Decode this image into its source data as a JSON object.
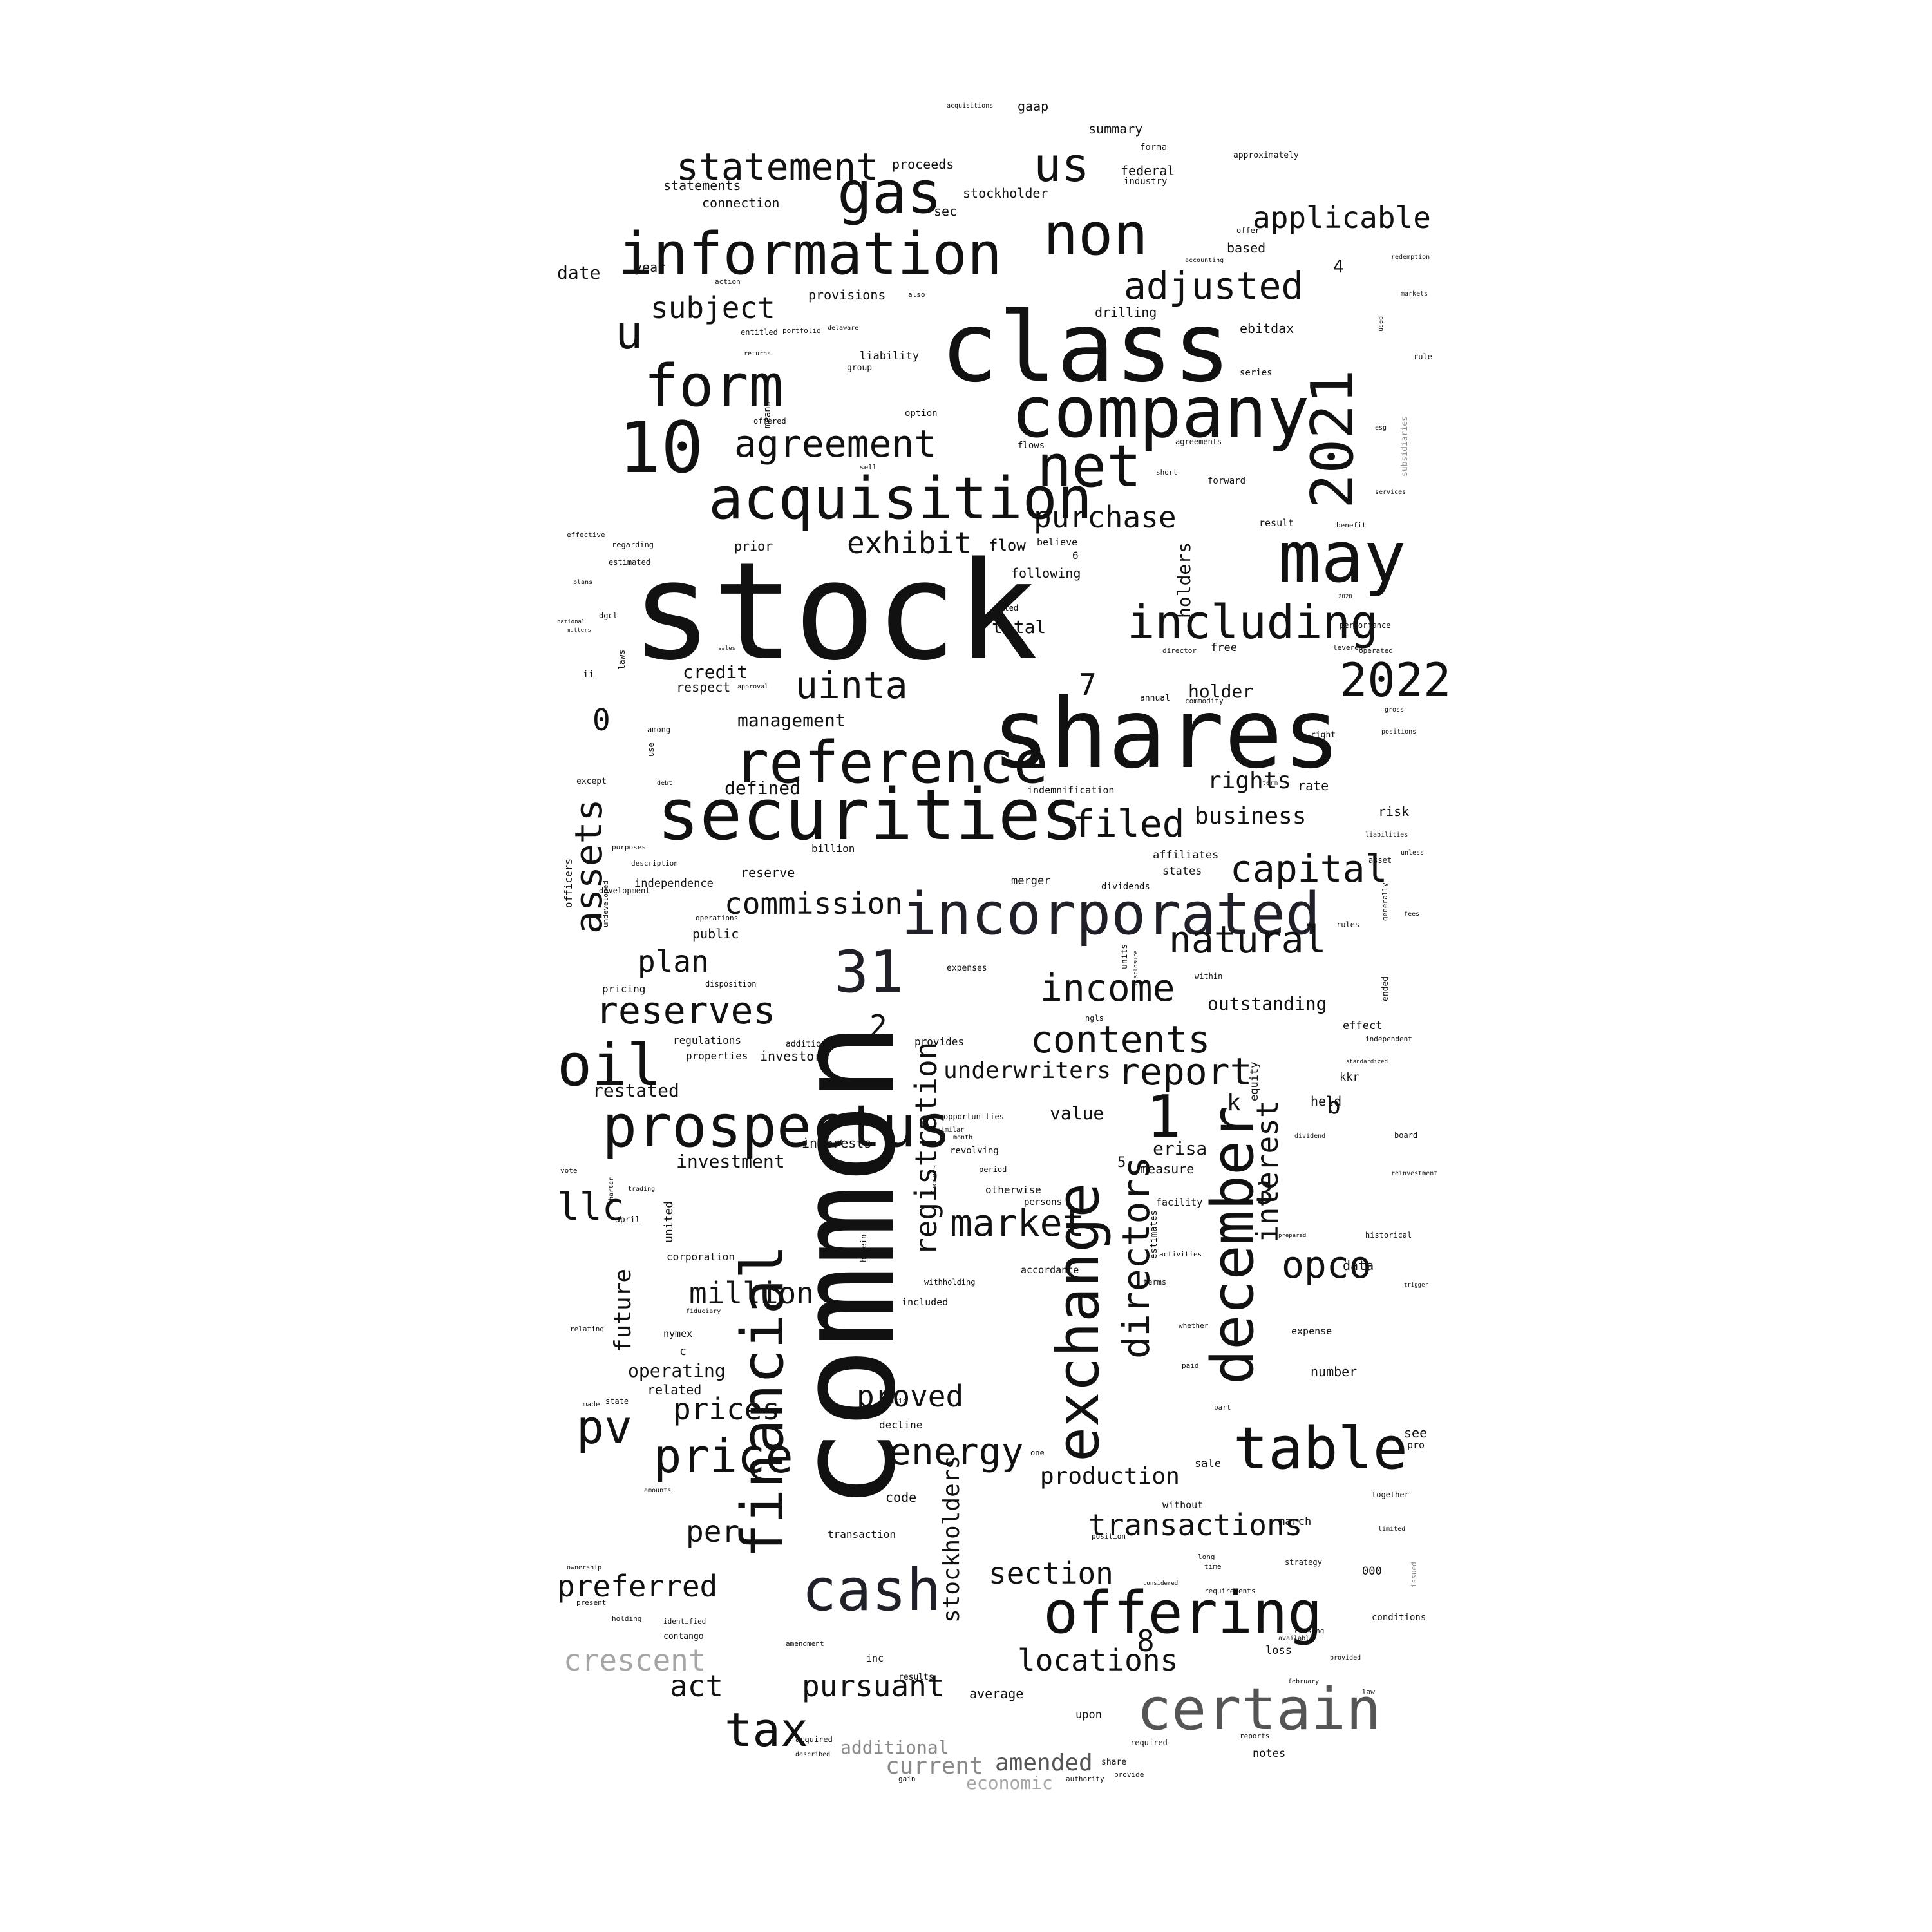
{
  "words": {
    "stock": "stock",
    "common": "common",
    "class": "class",
    "shares": "shares",
    "securities": "securities",
    "company": "company",
    "may": "may",
    "acquisition": "acquisition",
    "non": "non",
    "net": "net",
    "information": "information",
    "form": "form",
    "n10": "10",
    "n2021": "2021",
    "december": "december",
    "financial": "financial",
    "incorporated": "incorporated",
    "reference": "reference",
    "prospectus": "prospectus",
    "cash": "cash",
    "offering": "offering",
    "certain": "certain",
    "table": "table",
    "gas": "gas",
    "oil": "oil",
    "including": "including",
    "exchange": "exchange",
    "us": "us",
    "u": "u",
    "n1": "1",
    "n31": "31",
    "n2022": "2022",
    "tax": "tax",
    "price": "price",
    "energy": "energy",
    "statement": "statement",
    "adjusted": "adjusted",
    "agreement": "agreement",
    "uinta": "uinta",
    "filed": "filed",
    "capital": "capital",
    "natural": "natural",
    "income": "income",
    "contents": "contents",
    "reserves": "reserves",
    "assets": "assets",
    "directors": "directors",
    "registration": "registration",
    "market": "market",
    "report": "report",
    "opco": "opco",
    "interest": "interest",
    "applicable": "applicable",
    "subject": "subject",
    "exhibit": "exhibit",
    "purchase": "purchase",
    "commission": "commission",
    "plan": "plan",
    "million": "million",
    "prices": "prices",
    "proved": "proved",
    "locations": "locations",
    "section": "section",
    "transactions": "transactions",
    "production": "production",
    "pursuant": "pursuant",
    "preferred": "preferred",
    "crescent": "crescent",
    "act": "act",
    "per": "per",
    "pv": "pv",
    "llc": "llc",
    "future": "future",
    "amended": "amended",
    "current": "current",
    "additional": "additional",
    "economic": "economic",
    "underwriters": "underwriters",
    "stockholders": "stockholders",
    "business": "business",
    "rights": "rights",
    "holders": "holders",
    "holder": "holder",
    "credit": "credit",
    "management": "management",
    "defined": "defined",
    "total": "total",
    "outstanding": "outstanding",
    "value": "value",
    "investment": "investment",
    "operating": "operating",
    "erisa": "erisa",
    "restated": "restated",
    "date": "date",
    "year": "year",
    "statements": "statements",
    "connection": "connection",
    "proceeds": "proceeds",
    "gaap": "gaap",
    "summary": "summary",
    "federal": "federal",
    "stockholder": "stockholder",
    "sec": "sec",
    "based": "based",
    "ebitdax": "ebitdax",
    "drilling": "drilling",
    "provisions": "provisions",
    "liability": "liability",
    "flow": "flow",
    "following": "following",
    "prior": "prior",
    "respect": "respect",
    "reserve": "reserve",
    "public": "public",
    "independence": "independence",
    "regulations": "regulations",
    "properties": "properties",
    "investors": "investors",
    "corporation": "corporation",
    "nymex": "nymex",
    "related": "related",
    "equity": "equity",
    "held": "held",
    "kkr": "kkr",
    "effect": "effect",
    "measure": "measure",
    "facility": "facility",
    "data": "data",
    "number": "number",
    "expense": "expense",
    "see": "see",
    "sale": "sale",
    "march": "march",
    "loss": "loss",
    "notes": "notes",
    "conditions": "conditions",
    "affiliates": "affiliates",
    "states": "states",
    "risk": "risk",
    "rate": "rate",
    "dividends": "dividends",
    "merger": "merger",
    "indemnification": "indemnification",
    "billion": "billion",
    "revolving": "revolving",
    "otherwise": "otherwise",
    "persons": "persons",
    "accordance": "accordance",
    "included": "included",
    "decline": "decline",
    "code": "code",
    "transaction": "transaction",
    "average": "average",
    "upon": "upon",
    "without": "without",
    "industry": "industry",
    "forma": "forma",
    "approximately": "approximately",
    "means": "means",
    "offered": "offered",
    "option": "option",
    "flows": "flows",
    "agreements": "agreements",
    "forward": "forward",
    "short": "short",
    "result": "result",
    "believe": "believe",
    "dated": "dated",
    "free": "free",
    "director": "director",
    "annual": "annual",
    "commodity": "commodity",
    "right": "right",
    "term": "term",
    "performance": "performance",
    "levered": "levered",
    "operated": "operated",
    "subsidiaries": "subsidiaries",
    "services": "services",
    "benefit": "benefit",
    "esg": "esg",
    "markets": "markets",
    "redemption": "redemption",
    "rule": "rule",
    "used": "used",
    "series": "series",
    "accounting": "accounting",
    "offer": "offer",
    "also": "also",
    "portfolio": "portfolio",
    "delaware": "delaware",
    "entitled": "entitled",
    "action": "action",
    "group": "group",
    "returns": "returns",
    "sell": "sell",
    "effective": "effective",
    "regarding": "regarding",
    "estimated": "estimated",
    "plans": "plans",
    "dgcl": "dgcl",
    "national": "national",
    "matters": "matters",
    "laws": "laws",
    "ii": "ii",
    "sales": "sales",
    "approval": "approval",
    "among": "among",
    "use": "use",
    "except": "except",
    "debt": "debt",
    "purposes": "purposes",
    "description": "description",
    "officers": "officers",
    "development": "development",
    "undeveloped": "undeveloped",
    "operations": "operations",
    "pricing": "pricing",
    "disposition": "disposition",
    "addition": "addition",
    "interests": "interests",
    "vote": "vote",
    "charter": "charter",
    "trading": "trading",
    "april": "april",
    "united": "united",
    "fiduciary": "fiduciary",
    "relating": "relating",
    "made": "made",
    "state": "state",
    "amounts": "amounts",
    "ownership": "ownership",
    "present": "present",
    "holding": "holding",
    "identified": "identified",
    "contango": "contango",
    "amendment": "amendment",
    "inc": "inc",
    "results": "results",
    "acquired": "acquired",
    "described": "described",
    "gain": "gain",
    "share": "share",
    "provide": "provide",
    "authority": "authority",
    "required": "required",
    "reports": "reports",
    "provided": "provided",
    "law": "law",
    "february": "february",
    "closing": "closing",
    "available": "available",
    "requirements": "requirements",
    "strategy": "strategy",
    "together": "together",
    "limited": "limited",
    "issued": "issued",
    "one": "one",
    "basis": "basis",
    "withholding": "withholding",
    "herein": "herein",
    "factors": "factors",
    "estimates": "estimates",
    "terms": "terms",
    "activities": "activities",
    "whether": "whether",
    "paid": "paid",
    "part": "part",
    "time": "time",
    "long": "long",
    "position": "position",
    "considered": "considered",
    "units": "units",
    "within": "within",
    "provides": "provides",
    "opportunities": "opportunities",
    "expenses": "expenses",
    "ngls": "ngls",
    "generally": "generally",
    "ended": "ended",
    "rules": "rules",
    "fees": "fees",
    "unless": "unless",
    "asset": "asset",
    "liabilities": "liabilities",
    "positions": "positions",
    "gross": "gross",
    "independent": "independent",
    "standardized": "standardized",
    "dividend": "dividend",
    "board": "board",
    "reinvestment": "reinvestment",
    "historical": "historical",
    "trigger": "trigger",
    "prepared": "prepared",
    "pro": "pro",
    "acquisitions": "acquisitions",
    "similar": "similar",
    "period": "period",
    "month": "month",
    "disclosure": "disclosure",
    "c": "c",
    "b": "b",
    "k": "k",
    "n0": "0",
    "n2": "2",
    "n3": "3",
    "n4": "4",
    "n5": "5",
    "n6": "6",
    "n7": "7",
    "n8": "8",
    "n000": "000",
    "n2020": "2020"
  }
}
